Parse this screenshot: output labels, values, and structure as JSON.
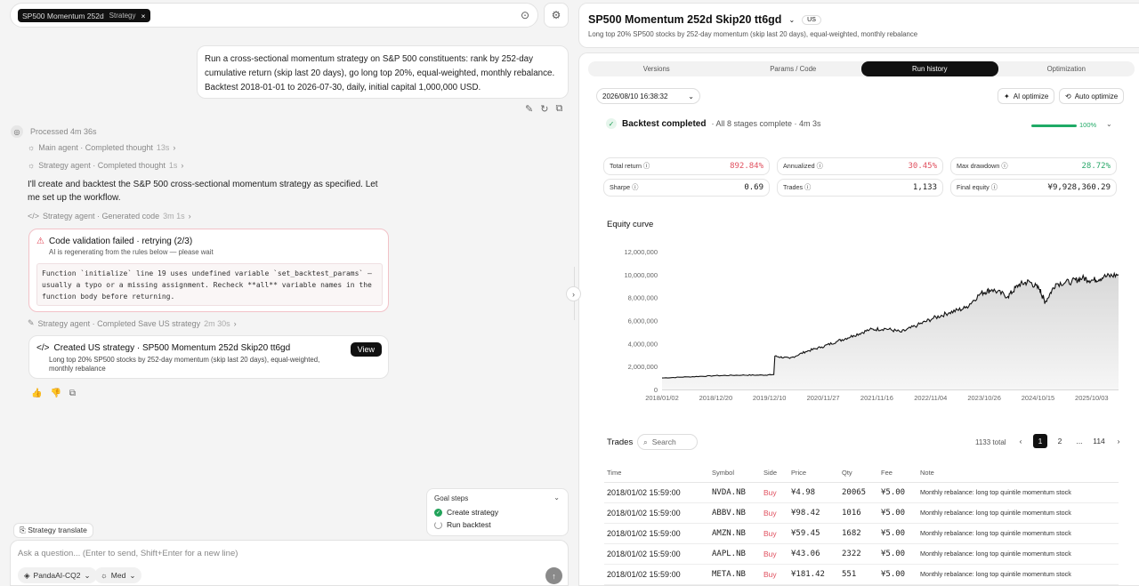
{
  "top": {
    "strategy_chip": "SP500 Momentum 252d",
    "strategy_chip_tag": "Strategy",
    "chip_close": "×"
  },
  "user_prompt": "Run a cross-sectional momentum strategy on S&P 500 constituents: rank by 252-day cumulative return (skip last 20 days), go long top 20%, equal-weighted, monthly rebalance. Backtest 2018-01-01 to 2026-07-30, daily, initial capital 1,000,000 USD.",
  "processed": "Processed 4m 36s",
  "thoughts": [
    {
      "label": "Main agent · Completed thought",
      "time": "13s"
    },
    {
      "label": "Strategy agent · Completed thought",
      "time": "1s"
    }
  ],
  "reply": "I'll create and backtest the S&P 500 cross-sectional momentum strategy as specified. Let me set up the workflow.",
  "generated_code": {
    "label": "Strategy agent · Generated code",
    "time": "3m 1s"
  },
  "error": {
    "title": "Code validation failed · retrying (2/3)",
    "subtitle": "AI is regenerating from the rules below — please wait",
    "code": "Function `initialize` line 19 uses undefined variable `set_backtest_params` — usually a typo or a missing assignment. Recheck **all** variable names in the function body before returning."
  },
  "saved": {
    "label": "Strategy agent · Completed Save US strategy",
    "time": "2m 30s"
  },
  "created": {
    "title": "Created US strategy · SP500 Momentum 252d Skip20 tt6gd",
    "desc": "Long top 20% SP500 stocks by 252-day momentum (skip last 20 days), equal-weighted, monthly rebalance",
    "view": "View"
  },
  "goal": {
    "title": "Goal steps",
    "steps": [
      "Create strategy",
      "Run backtest"
    ]
  },
  "translate": "Strategy translate",
  "input": {
    "placeholder": "Ask a question... (Enter to send, Shift+Enter for a new line)",
    "model": "PandaAI-CQ2",
    "effort": "Med"
  },
  "strategy": {
    "name": "SP500 Momentum 252d Skip20 tt6gd",
    "market": "US",
    "desc": "Long top 20% SP500 stocks by 252-day momentum (skip last 20 days), equal-weighted, monthly rebalance"
  },
  "tabs": [
    "Versions",
    "Params / Code",
    "Run history",
    "Optimization"
  ],
  "run": {
    "datetime": "2026/08/10 16:38:32",
    "ai_optimize": "AI optimize",
    "auto_optimize": "Auto optimize",
    "status": "Backtest completed",
    "status_rest": "· All 8 stages complete · 4m 3s",
    "progress_pct": "100%",
    "progress": 1.0
  },
  "metrics": {
    "total_return": {
      "label": "Total return",
      "value": "892.84%"
    },
    "annualized": {
      "label": "Annualized",
      "value": "30.45%"
    },
    "max_drawdown": {
      "label": "Max drawdown",
      "value": "28.72%"
    },
    "sharpe": {
      "label": "Sharpe",
      "value": "0.69"
    },
    "trades": {
      "label": "Trades",
      "value": "1,133"
    },
    "final_equity": {
      "label": "Final equity",
      "value": "¥9,928,360.29"
    }
  },
  "chart_title": "Equity curve",
  "chart_data": {
    "type": "area",
    "title": "Equity curve",
    "x_ticks": [
      "2018/01/02",
      "2018/12/20",
      "2019/12/10",
      "2020/11/27",
      "2021/11/16",
      "2022/11/04",
      "2023/10/26",
      "2024/10/15",
      "2025/10/03"
    ],
    "y_ticks": [
      "0",
      "2,000,000",
      "4,000,000",
      "6,000,000",
      "8,000,000",
      "10,000,000",
      "12,000,000"
    ],
    "ylim": [
      0,
      12000000
    ],
    "x": [
      2018.0,
      2018.5,
      2019.0,
      2019.5,
      2019.9,
      2020.1,
      2020.12,
      2020.4,
      2020.7,
      2021.0,
      2021.3,
      2021.6,
      2021.9,
      2022.2,
      2022.5,
      2022.8,
      2023.1,
      2023.4,
      2023.7,
      2024.0,
      2024.2,
      2024.5,
      2024.7,
      2024.9,
      2025.1,
      2025.2,
      2025.4,
      2025.7,
      2025.9,
      2026.1,
      2026.3,
      2026.58
    ],
    "values": [
      1000000,
      1100000,
      1200000,
      1250000,
      1250000,
      1300000,
      2900000,
      2700000,
      3300000,
      3700000,
      4200000,
      4700000,
      5200000,
      5300000,
      5000000,
      5600000,
      6200000,
      6700000,
      7100000,
      8400000,
      8700000,
      8100000,
      9100000,
      9400000,
      8700000,
      7600000,
      9200000,
      9400000,
      9700000,
      9500000,
      9800000,
      10000000
    ]
  },
  "trades": {
    "title": "Trades",
    "search_placeholder": "Search",
    "total": "1133 total",
    "pages": [
      "1",
      "2",
      "...",
      "114"
    ],
    "columns": [
      "Time",
      "Symbol",
      "Side",
      "Price",
      "Qty",
      "Fee",
      "Note"
    ],
    "rows": [
      [
        "2018/01/02 15:59:00",
        "NVDA.NB",
        "Buy",
        "¥4.98",
        "20065",
        "¥5.00",
        "Monthly rebalance: long top quintile momentum stock"
      ],
      [
        "2018/01/02 15:59:00",
        "ABBV.NB",
        "Buy",
        "¥98.42",
        "1016",
        "¥5.00",
        "Monthly rebalance: long top quintile momentum stock"
      ],
      [
        "2018/01/02 15:59:00",
        "AMZN.NB",
        "Buy",
        "¥59.45",
        "1682",
        "¥5.00",
        "Monthly rebalance: long top quintile momentum stock"
      ],
      [
        "2018/01/02 15:59:00",
        "AAPL.NB",
        "Buy",
        "¥43.06",
        "2322",
        "¥5.00",
        "Monthly rebalance: long top quintile momentum stock"
      ],
      [
        "2018/01/02 15:59:00",
        "META.NB",
        "Buy",
        "¥181.42",
        "551",
        "¥5.00",
        "Monthly rebalance: long top quintile momentum stock"
      ]
    ]
  },
  "colors": {
    "accent_green": "#1faa66",
    "buy_red": "#e0505f",
    "error_red": "#e03a4c"
  }
}
